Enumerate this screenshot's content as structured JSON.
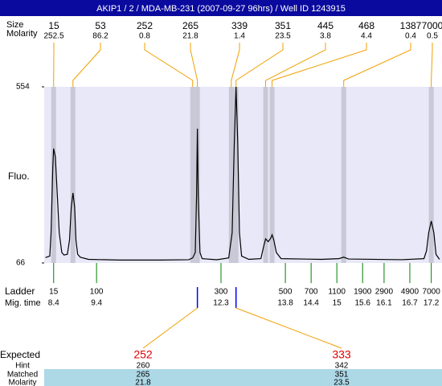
{
  "title": "AKIP1 / 2 / MDA-MB-231 (2007-09-27 96hrs) / Well ID 1243915",
  "chart_data": {
    "type": "line",
    "ylabel": "Fluo.",
    "peak_header": [
      "Size",
      "Molarity"
    ],
    "peaks": {
      "sizes": [
        15,
        53,
        252,
        265,
        339,
        351,
        445,
        468,
        1387,
        7000
      ],
      "molarity": [
        252.5,
        86.2,
        0.8,
        21.8,
        1.4,
        23.5,
        3.8,
        4.4,
        0.4,
        0.5
      ],
      "times": [
        8.4,
        8.85,
        11.64,
        11.75,
        12.54,
        12.65,
        13.34,
        13.49,
        15.16,
        17.2
      ]
    },
    "x": [
      8.21,
      8.31,
      8.34,
      8.38,
      8.4,
      8.44,
      8.47,
      8.53,
      8.59,
      8.64,
      8.72,
      8.77,
      8.81,
      8.85,
      8.89,
      8.92,
      8.96,
      9.02,
      9.21,
      9.95,
      10.89,
      11.55,
      11.64,
      11.7,
      11.73,
      11.75,
      11.77,
      11.81,
      11.86,
      12.2,
      12.48,
      12.56,
      12.61,
      12.65,
      12.69,
      12.73,
      12.78,
      12.95,
      13.23,
      13.29,
      13.34,
      13.4,
      13.46,
      13.49,
      13.53,
      13.59,
      13.7,
      14.64,
      15.05,
      15.16,
      15.27,
      16.51,
      17.03,
      17.09,
      17.14,
      17.2,
      17.26,
      17.31,
      17.39
    ],
    "values": [
      81,
      85,
      150,
      330,
      383,
      360,
      290,
      150,
      95,
      88,
      90,
      130,
      220,
      260,
      220,
      130,
      90,
      82,
      76,
      74,
      74,
      75,
      80,
      95,
      250,
      438,
      250,
      95,
      78,
      75,
      80,
      150,
      400,
      554,
      400,
      150,
      85,
      76,
      78,
      110,
      133,
      125,
      135,
      144,
      130,
      95,
      78,
      76,
      78,
      82,
      77,
      75,
      78,
      100,
      150,
      182,
      150,
      90,
      76
    ],
    "color": "#000000",
    "xlim": [
      8.18,
      17.45
    ],
    "ylim": [
      66,
      554
    ],
    "yticks": [
      66,
      554
    ],
    "ladder_label": "Ladder",
    "time_label": "Mig. time",
    "ladder": {
      "sizes": [
        15,
        100,
        300,
        500,
        700,
        1100,
        1900,
        2900,
        4900,
        7000
      ],
      "times": [
        8.4,
        9.4,
        12.3,
        13.8,
        14.4,
        15,
        15.6,
        16.1,
        16.7,
        17.2
      ]
    }
  },
  "expected": {
    "row_labels": [
      "Expected",
      "Hint",
      "Matched",
      "Molarity"
    ],
    "columns": [
      {
        "expected": 252,
        "hint": 260,
        "matched": 265,
        "molarity": 21.8
      },
      {
        "expected": 333,
        "hint": 342,
        "matched": 351,
        "molarity": 23.5
      }
    ]
  }
}
